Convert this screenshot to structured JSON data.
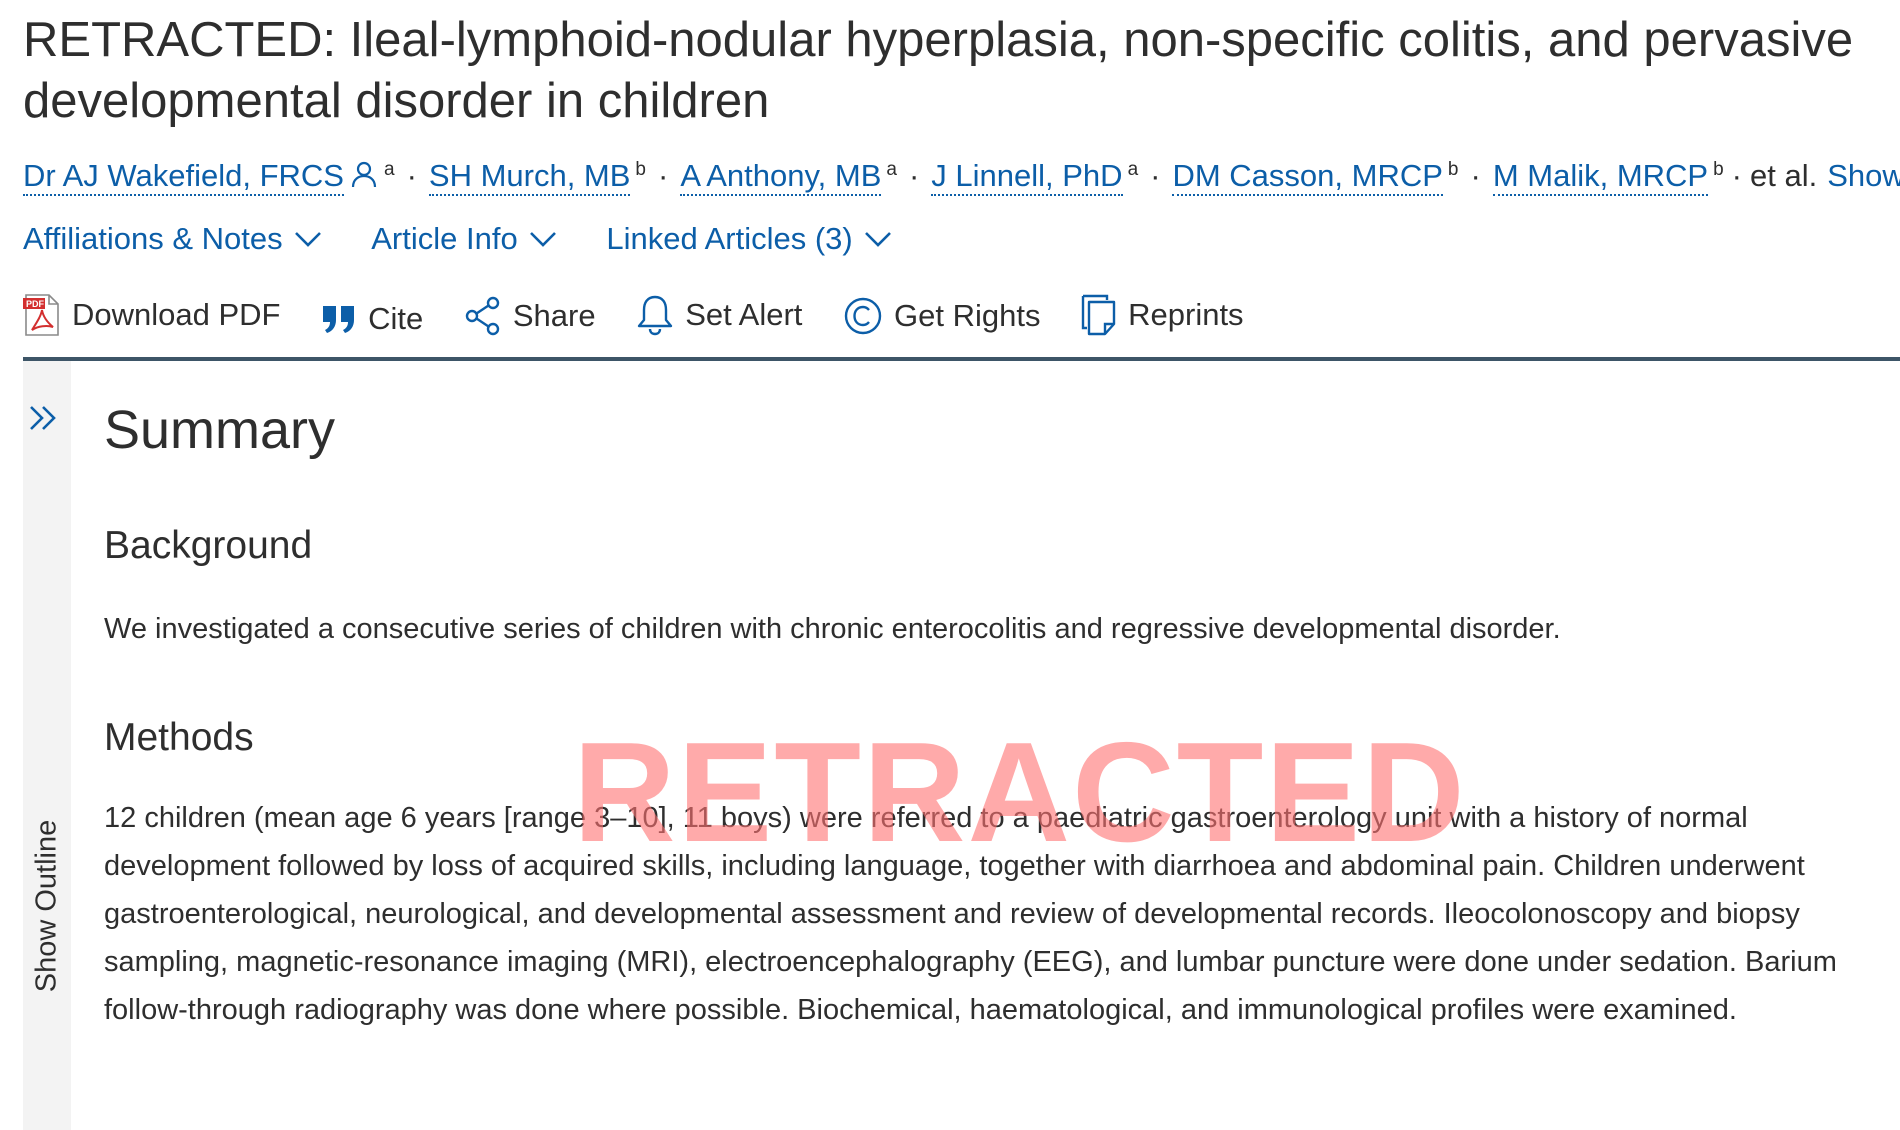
{
  "article": {
    "title": "RETRACTED: Ileal-lymphoid-nodular hyperplasia, non-specific colitis, and pervasive developmental disorder in children",
    "authors": [
      {
        "name": "Dr AJ Wakefield, FRCS",
        "sup": "a",
        "corresponding": true
      },
      {
        "name": "SH Murch, MB",
        "sup": "b"
      },
      {
        "name": "A Anthony, MB",
        "sup": "a"
      },
      {
        "name": "J Linnell, PhD",
        "sup": "a"
      },
      {
        "name": "DM Casson, MRCP",
        "sup": "b"
      },
      {
        "name": "M Malik, MRCP",
        "sup": "b"
      }
    ],
    "separator": "·",
    "et_al": "et al.",
    "show_more": "Show more"
  },
  "toggles": {
    "affiliations": "Affiliations & Notes",
    "article_info": "Article Info",
    "linked_articles": "Linked Articles (3)"
  },
  "toolbar": {
    "download_pdf": "Download PDF",
    "cite": "Cite",
    "share": "Share",
    "set_alert": "Set Alert",
    "get_rights": "Get Rights",
    "reprints": "Reprints",
    "pdf_badge": "PDF"
  },
  "outline": {
    "label": "Show Outline"
  },
  "summary": {
    "heading": "Summary",
    "background_heading": "Background",
    "background_text": "We investigated a consecutive series of children with chronic enterocolitis and regressive developmental disorder.",
    "methods_heading": "Methods",
    "methods_text": "12 children (mean age 6 years [range 3–10], 11 boys) were referred to a paediatric gastroenterology unit with a history of normal development followed by loss of acquired skills, including language, together with diarrhoea and abdominal pain. Children underwent gastroenterological, neurological, and developmental assessment and review of developmental records. Ileocolonoscopy and biopsy sampling, magnetic-resonance imaging (MRI), electroencephalography (EEG), and lumbar puncture were done under sedation. Barium follow-through radiography was done where possible. Biochemical, haematological, and immunological profiles were examined."
  },
  "watermark": "RETRACTED",
  "colors": {
    "link": "#0c5ea8",
    "text": "#2e2e2e",
    "rule": "#3d5567",
    "watermark": "#ff7272",
    "pdf_red": "#d32f2f"
  }
}
